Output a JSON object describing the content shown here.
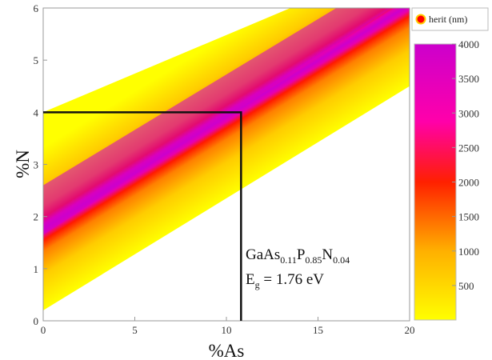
{
  "chart_data": {
    "type": "heatmap",
    "title": "",
    "xlabel": "%As",
    "ylabel": "%N",
    "xlim": [
      0,
      20
    ],
    "ylim": [
      0,
      6
    ],
    "x_ticks": [
      "0",
      "5",
      "10",
      "15",
      "20"
    ],
    "y_ticks": [
      "0",
      "1",
      "2",
      "3",
      "4",
      "5",
      "6"
    ],
    "grid": false,
    "colorbar": {
      "label": "herit (nm)",
      "range": [
        0,
        4000
      ],
      "ticks": [
        "500",
        "1000",
        "1500",
        "2000",
        "2500",
        "3000",
        "3500",
        "4000"
      ],
      "colors": [
        "#ffff00",
        "#ffa500",
        "#ff0000",
        "#ff00aa",
        "#cc00cc"
      ]
    },
    "bands": [
      {
        "level": "yellow",
        "lower_edge": [
          [
            0,
            0.2
          ],
          [
            20,
            4.5
          ]
        ],
        "upper_edge": [
          [
            0,
            4.0
          ],
          [
            13.5,
            6
          ]
        ]
      },
      {
        "level": "red",
        "lower_edge": [
          [
            0,
            1.3
          ],
          [
            20,
            5.8
          ]
        ],
        "upper_edge": [
          [
            0,
            2.9
          ],
          [
            17.5,
            6
          ]
        ]
      },
      {
        "level": "magenta",
        "lower_edge": [
          [
            0,
            1.65
          ],
          [
            19,
            6
          ]
        ],
        "upper_edge": [
          [
            0,
            2.6
          ],
          [
            16,
            6
          ]
        ]
      }
    ],
    "crosshair": {
      "x": 10.8,
      "y": 4.0
    },
    "annotation": {
      "compound": {
        "parts": [
          {
            "text": "GaAs",
            "sub": "0.11"
          },
          {
            "text": "P",
            "sub": "0.85"
          },
          {
            "text": "N",
            "sub": "0.04"
          }
        ]
      },
      "energy": {
        "symbol": "E",
        "sub": "g",
        "value": " = 1.76 eV"
      }
    }
  }
}
